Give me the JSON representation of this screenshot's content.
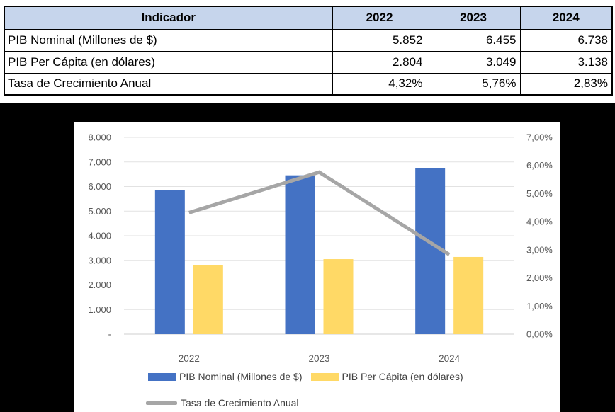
{
  "table": {
    "header_bg": "#C6D5EC",
    "columns": [
      "Indicador",
      "2022",
      "2023",
      "2024"
    ],
    "rows": [
      {
        "label": "PIB Nominal (Millones de $)",
        "values": [
          "5.852",
          "6.455",
          "6.738"
        ]
      },
      {
        "label": "PIB Per Cápita (en dólares)",
        "values": [
          "2.804",
          "3.049",
          "3.138"
        ]
      },
      {
        "label": "Tasa de Crecimiento Anual",
        "values": [
          "4,32%",
          "5,76%",
          "2,83%"
        ]
      }
    ]
  },
  "chart_data": {
    "type": "combo",
    "title": "",
    "categories": [
      "2022",
      "2023",
      "2024"
    ],
    "series": [
      {
        "name": "PIB Nominal (Millones de $)",
        "type": "bar",
        "axis": "left",
        "color": "#4472C4",
        "values": [
          5852,
          6455,
          6738
        ]
      },
      {
        "name": "PIB Per Cápita (en dólares)",
        "type": "bar",
        "axis": "left",
        "color": "#FFD966",
        "values": [
          2804,
          3049,
          3138
        ]
      },
      {
        "name": "Tasa de Crecimiento Anual",
        "type": "line",
        "axis": "right",
        "color": "#A6A6A6",
        "values": [
          4.32,
          5.76,
          2.83
        ]
      }
    ],
    "left_axis": {
      "min": 0,
      "max": 8000,
      "step": 1000,
      "labels": [
        "8.000",
        "7.000",
        "6.000",
        "5.000",
        "4.000",
        "3.000",
        "2.000",
        "1.000",
        "-"
      ]
    },
    "right_axis": {
      "min": 0,
      "max": 7,
      "step": 1,
      "labels": [
        "7,00%",
        "6,00%",
        "5,00%",
        "4,00%",
        "3,00%",
        "2,00%",
        "1,00%",
        "0,00%"
      ]
    },
    "grid": true,
    "legend_position": "bottom",
    "grid_color": "#E2E2E2",
    "axis_line_color": "#CFCFCF",
    "text_color": "#595959",
    "plot_background": "#FFFFFF",
    "outer_background": "#000000"
  }
}
